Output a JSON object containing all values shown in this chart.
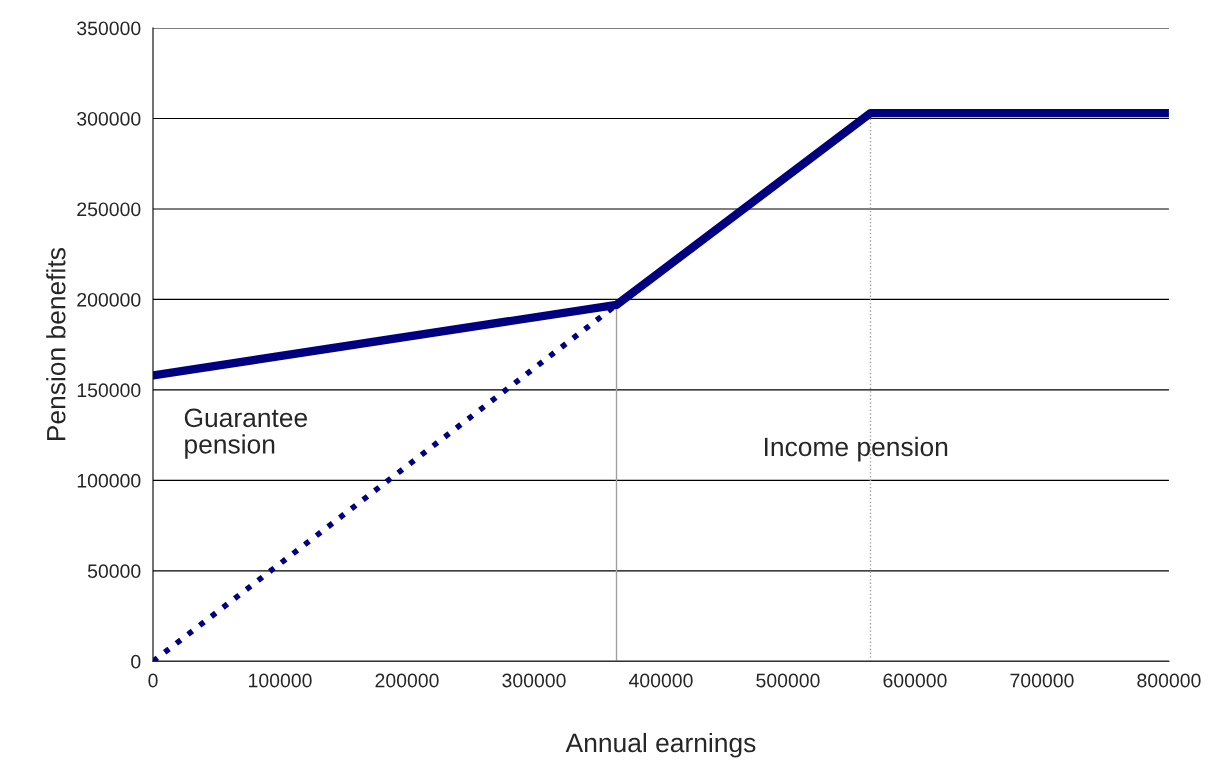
{
  "chart_data": {
    "type": "line",
    "xlabel": "Annual earnings",
    "ylabel": "Pension benefits",
    "xlim": [
      0,
      800000
    ],
    "xticks": [
      0,
      100000,
      200000,
      300000,
      400000,
      500000,
      600000,
      700000,
      800000
    ],
    "ylim": [
      0,
      350000
    ],
    "yticks": [
      0,
      50000,
      100000,
      150000,
      200000,
      250000,
      300000,
      350000
    ],
    "grid": "y",
    "marker": "none",
    "series": [
      {
        "color": "#000080",
        "line_style": "solid",
        "x": [
          0,
          365000,
          565000,
          800000
        ],
        "values": [
          158000,
          197000,
          303000,
          303000
        ]
      },
      {
        "color": "#000080",
        "line_style": "dotted",
        "x": [
          0,
          365000
        ],
        "values": [
          0,
          197000
        ]
      },
      {
        "color": "#a0a0a0",
        "line_style": "solid",
        "x": [
          365000,
          365000
        ],
        "values": [
          0,
          197000
        ]
      },
      {
        "color": "#a0a0a0",
        "line_style": "dotted",
        "x": [
          565000,
          565000
        ],
        "values": [
          0,
          303000
        ]
      }
    ],
    "annotations": [
      "Guarantee\npension",
      "Income pension"
    ]
  }
}
